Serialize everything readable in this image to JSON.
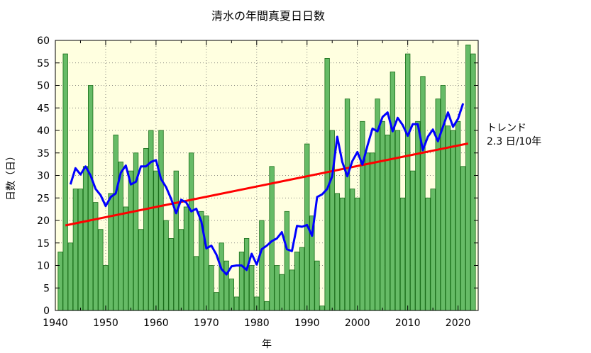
{
  "chart_data": {
    "type": "bar",
    "title": "清水の年間真夏日日数",
    "xlabel": "年",
    "ylabel": "日数（日）",
    "xlim": [
      1940,
      2024
    ],
    "ylim": [
      0,
      60
    ],
    "x_ticks": [
      1940,
      1950,
      1960,
      1970,
      1980,
      1990,
      2000,
      2010,
      2020
    ],
    "y_ticks": [
      0,
      5,
      10,
      15,
      20,
      25,
      30,
      35,
      40,
      45,
      50,
      55,
      60
    ],
    "grid": true,
    "years": [
      1941,
      1942,
      1943,
      1944,
      1945,
      1946,
      1947,
      1948,
      1949,
      1950,
      1951,
      1952,
      1953,
      1954,
      1955,
      1956,
      1957,
      1958,
      1959,
      1960,
      1961,
      1962,
      1963,
      1964,
      1965,
      1966,
      1967,
      1968,
      1969,
      1970,
      1971,
      1972,
      1973,
      1974,
      1975,
      1976,
      1977,
      1978,
      1979,
      1980,
      1981,
      1982,
      1983,
      1984,
      1985,
      1986,
      1987,
      1988,
      1989,
      1990,
      1991,
      1992,
      1993,
      1994,
      1995,
      1996,
      1997,
      1998,
      1999,
      2000,
      2001,
      2002,
      2003,
      2004,
      2005,
      2006,
      2007,
      2008,
      2009,
      2010,
      2011,
      2012,
      2013,
      2014,
      2015,
      2016,
      2017,
      2018,
      2019,
      2020,
      2021,
      2022,
      2023
    ],
    "values": [
      13,
      57,
      15,
      27,
      27,
      32,
      50,
      24,
      18,
      10,
      26,
      39,
      33,
      23,
      31,
      35,
      18,
      36,
      40,
      31,
      40,
      20,
      16,
      31,
      18,
      23,
      35,
      12,
      22,
      21,
      10,
      4,
      15,
      11,
      7,
      3,
      13,
      16,
      10,
      3,
      20,
      2,
      32,
      10,
      8,
      22,
      9,
      13,
      14,
      37,
      21,
      11,
      1,
      56,
      40,
      26,
      25,
      47,
      27,
      25,
      42,
      35,
      35,
      47,
      42,
      39,
      53,
      40,
      25,
      57,
      31,
      42,
      52,
      25,
      27,
      47,
      50,
      41,
      40,
      42,
      32,
      59,
      57
    ],
    "series": [
      {
        "type": "line",
        "color": "#0000ff",
        "x": [
          1943,
          1944,
          1945,
          1946,
          1947,
          1948,
          1949,
          1950,
          1951,
          1952,
          1953,
          1954,
          1955,
          1956,
          1957,
          1958,
          1959,
          1960,
          1961,
          1962,
          1963,
          1964,
          1965,
          1966,
          1967,
          1968,
          1969,
          1970,
          1971,
          1972,
          1973,
          1974,
          1975,
          1976,
          1977,
          1978,
          1979,
          1980,
          1981,
          1982,
          1983,
          1984,
          1985,
          1986,
          1987,
          1988,
          1989,
          1990,
          1991,
          1992,
          1993,
          1994,
          1995,
          1996,
          1997,
          1998,
          1999,
          2000,
          2001,
          2002,
          2003,
          2004,
          2005,
          2006,
          2007,
          2008,
          2009,
          2010,
          2011,
          2012,
          2013,
          2014,
          2015,
          2016,
          2017,
          2018,
          2019,
          2020,
          2021
        ],
        "values": [
          28,
          31.6,
          30.2,
          32,
          30,
          27,
          25.6,
          23.2,
          25.2,
          26,
          30.6,
          32.2,
          28,
          28.6,
          32,
          32,
          33,
          33.4,
          29.2,
          27.4,
          24.8,
          21.6,
          24.6,
          24,
          22,
          22.6,
          19.8,
          13.8,
          14.4,
          12.4,
          9.2,
          8,
          9.8,
          10,
          10,
          9,
          12.6,
          10.2,
          13.6,
          14.4,
          15.4,
          16,
          17.4,
          13.6,
          13.2,
          18.8,
          18.6,
          19,
          16.6,
          25.2,
          25.8,
          27,
          29.8,
          38.6,
          33,
          29.8,
          33.2,
          35.2,
          32.4,
          36.6,
          40.4,
          39.8,
          43,
          44,
          39.8,
          42.8,
          41.2,
          38.8,
          41.4,
          41.4,
          35.6,
          38.6,
          40.2,
          37.6,
          40.8,
          44,
          40.8,
          42.6,
          46
        ]
      },
      {
        "type": "line",
        "color": "#ff0000",
        "x": [
          1942,
          2022
        ],
        "values": [
          18.9,
          37.1
        ]
      }
    ],
    "colors": {
      "plot_background": "#ffffe0",
      "bar_fill": "#66bb66",
      "bar_edge": "#1a6e1a"
    },
    "annotations": [
      "トレンド",
      "2.3 日/10年"
    ]
  }
}
